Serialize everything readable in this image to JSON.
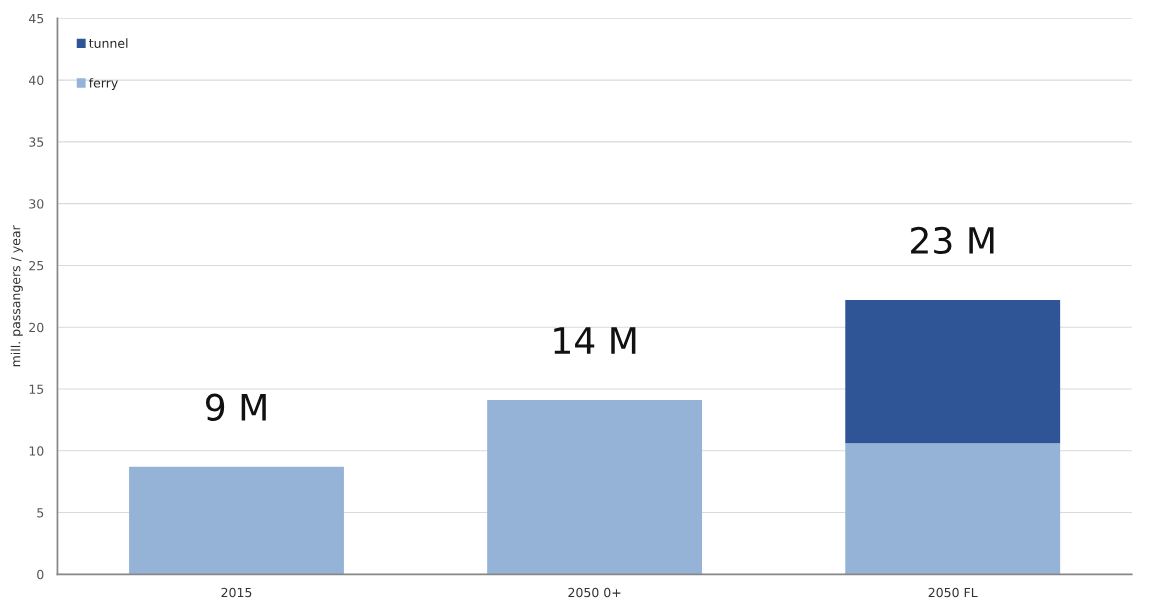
{
  "chart_data": {
    "type": "bar",
    "stacked": true,
    "ylabel": "mill. passangers / year",
    "categories": [
      "2015",
      "2050 0+",
      "2050 FL"
    ],
    "series": [
      {
        "name": "ferry",
        "color": "#95b3d7",
        "values": [
          8.7,
          14.1,
          10.6
        ]
      },
      {
        "name": "tunnel",
        "color": "#2f5597",
        "values": [
          0,
          0,
          11.6
        ]
      }
    ],
    "totals": [
      "9 M",
      "14 M",
      "23 M"
    ],
    "ylim": [
      0,
      45
    ],
    "yticks": [
      0,
      5,
      10,
      15,
      20,
      25,
      30,
      35,
      40,
      45
    ],
    "grid": "y",
    "legend": "top left"
  }
}
